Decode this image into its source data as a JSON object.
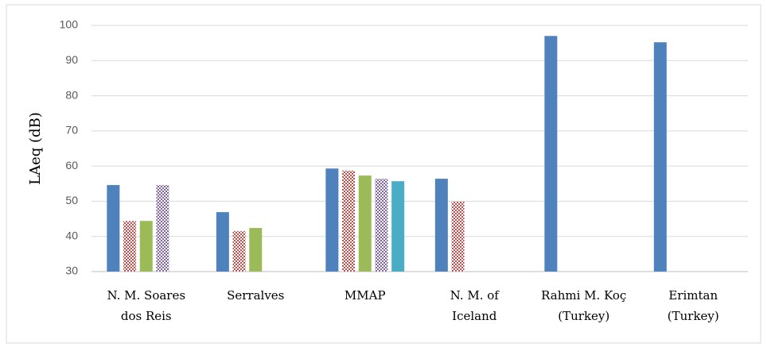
{
  "chart_data": {
    "type": "bar",
    "y_label": "LAeq (dB)",
    "categories": [
      [
        "N. M. Soares",
        "dos Reis"
      ],
      [
        "Serralves"
      ],
      [
        "MMAP"
      ],
      [
        "N. M. of",
        "Iceland"
      ],
      [
        "Rahmi M. Koç",
        "(Turkey)"
      ],
      [
        "Erimtan",
        "(Turkey)"
      ]
    ],
    "series": [
      {
        "color": "#4f81bd",
        "pattern": "solid",
        "values": [
          54.6,
          46.9,
          59.3,
          56.4,
          97.0,
          95.2
        ]
      },
      {
        "color": "#c0504d",
        "pattern": "checker",
        "values": [
          44.4,
          41.5,
          58.7,
          49.9,
          null,
          null
        ]
      },
      {
        "color": "#9bbb59",
        "pattern": "solid",
        "values": [
          44.4,
          42.4,
          57.3,
          null,
          null,
          null
        ]
      },
      {
        "color": "#8064a2",
        "pattern": "checker",
        "values": [
          54.6,
          null,
          56.4,
          null,
          null,
          null
        ]
      },
      {
        "color": "#4bacc6",
        "pattern": "solid",
        "values": [
          null,
          null,
          55.7,
          null,
          null,
          null
        ]
      }
    ],
    "ylim": [
      30,
      100
    ],
    "yticks": [
      30,
      40,
      50,
      60,
      70,
      80,
      90,
      100
    ],
    "grid": true
  }
}
